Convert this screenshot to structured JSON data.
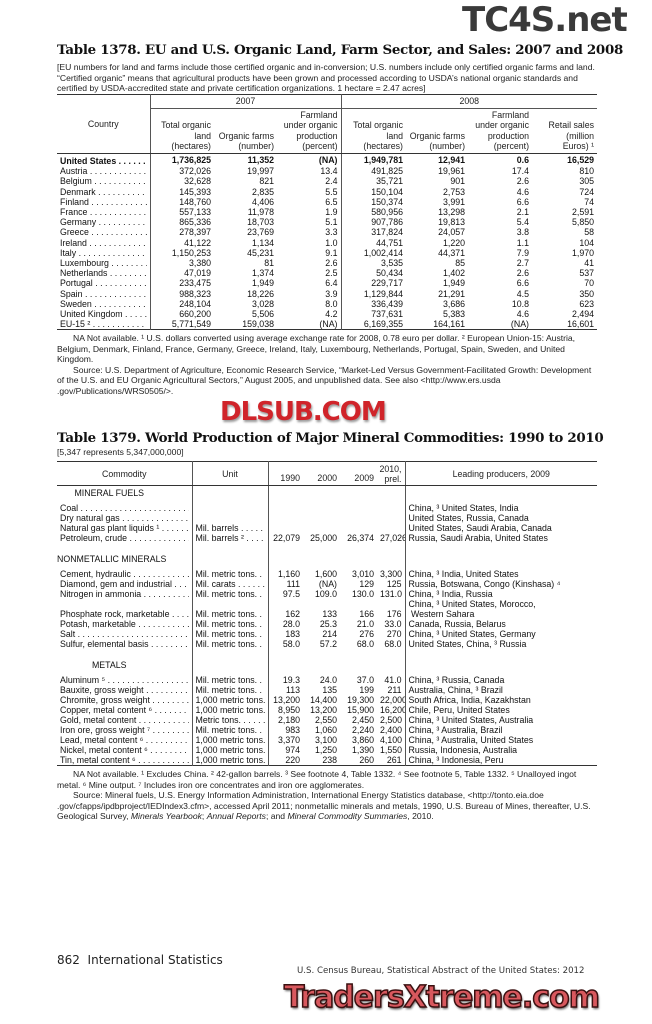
{
  "watermarks": {
    "top": "TC4S.net",
    "middle": "DLSUB.COM",
    "bottom": "TradersXtreme.com"
  },
  "table1378": {
    "title": "Table 1378. EU and U.S. Organic Land, Farm Sector, and Sales: 2007 and 2008",
    "headnote": "[EU numbers for land and farms include those certified organic and in-conversion; U.S. numbers include only certified organic farms and land. “Certified organic” means that agricultural products have been grown and processed according  to USDA’s national organic standards and certified by USDA-accredited state and private certification organizations. 1 hectare = 2.47 acres]",
    "col_country": "Country",
    "year_2007": "2007",
    "year_2008": "2008",
    "cols": [
      "Total organic land (hectares)",
      "Organic farms (number)",
      "Farmland under organic production (percent)",
      "Total organic land (hectares)",
      "Organic farms (number)",
      "Farmland under organic production (percent)",
      "Retail sales (million Euros) ¹"
    ],
    "rows": [
      [
        "United States",
        "1,736,825",
        "11,352",
        "(NA)",
        "1,949,781",
        "12,941",
        "0.6",
        "16,529"
      ],
      [
        "Austria",
        "372,026",
        "19,997",
        "13.4",
        "491,825",
        "19,961",
        "17.4",
        "810"
      ],
      [
        "Belgium",
        "32,628",
        "821",
        "2.4",
        "35,721",
        "901",
        "2.6",
        "305"
      ],
      [
        "Denmark",
        "145,393",
        "2,835",
        "5.5",
        "150,104",
        "2,753",
        "4.6",
        "724"
      ],
      [
        "Finland",
        "148,760",
        "4,406",
        "6.5",
        "150,374",
        "3,991",
        "6.6",
        "74"
      ],
      [
        "France",
        "557,133",
        "11,978",
        "1.9",
        "580,956",
        "13,298",
        "2.1",
        "2,591"
      ],
      [
        "Germany",
        "865,336",
        "18,703",
        "5.1",
        "907,786",
        "19,813",
        "5.4",
        "5,850"
      ],
      [
        "Greece",
        "278,397",
        "23,769",
        "3.3",
        "317,824",
        "24,057",
        "3.8",
        "58"
      ],
      [
        "Ireland",
        "41,122",
        "1,134",
        "1.0",
        "44,751",
        "1,220",
        "1.1",
        "104"
      ],
      [
        "Italy",
        "1,150,253",
        "45,231",
        "9.1",
        "1,002,414",
        "44,371",
        "7.9",
        "1,970"
      ],
      [
        "Luxembourg",
        "3,380",
        "81",
        "2.6",
        "3,535",
        "85",
        "2.7",
        "41"
      ],
      [
        "Netherlands",
        "47,019",
        "1,374",
        "2.5",
        "50,434",
        "1,402",
        "2.6",
        "537"
      ],
      [
        "Portugal",
        "233,475",
        "1,949",
        "6.4",
        "229,717",
        "1,949",
        "6.6",
        "70"
      ],
      [
        "Spain",
        "988,323",
        "18,226",
        "3.9",
        "1,129,844",
        "21,291",
        "4.5",
        "350"
      ],
      [
        "Sweden",
        "248,104",
        "3,028",
        "8.0",
        "336,439",
        "3,686",
        "10.8",
        "623"
      ],
      [
        "United Kingdom",
        "660,200",
        "5,506",
        "4.2",
        "737,631",
        "5,383",
        "4.6",
        "2,494"
      ],
      [
        "EU-15 ²",
        "5,771,549",
        "159,038",
        "(NA)",
        "6,169,355",
        "164,161",
        "(NA)",
        "16,601"
      ]
    ],
    "footnote": "NA Not available. ¹ U.S. dollars converted using average exchange rate for 2008, 0.78 euro per dollar. ² European Union-15: Austria, Belgium, Denmark, Finland, France, Germany, Greece, Ireland, Italy, Luxembourg, Netherlands, Portugal, Spain, Sweden, and United Kingdom.",
    "source": "Source: U.S. Department of Agriculture, Economic Research Service, “Market-Led Versus Government-Facilitated Growth: Development of the U.S. and EU Organic Agricultural Sectors,” August 2005, and unpublished data. See also <http://www.ers.usda .gov/Publications/WRS0505/>."
  },
  "table1379": {
    "title": "Table 1379. World Production of Major Mineral Commodities: 1990 to 2010",
    "headnote": "[5,347 represents 5,347,000,000]",
    "headers": {
      "commodity": "Commodity",
      "unit": "Unit",
      "y1990": "1990",
      "y2000": "2000",
      "y2009": "2009",
      "y2010": "2010, prel.",
      "leading": "Leading producers, 2009"
    },
    "sections": [
      {
        "heading": "MINERAL FUELS",
        "rows": [
          [
            "Coal",
            "",
            "",
            "",
            "",
            "",
            "China, ³ United States, India"
          ],
          [
            "Dry natural gas",
            "",
            "",
            "",
            "",
            "",
            "United States, Russia, Canada"
          ],
          [
            "Natural gas plant liquids ¹",
            "Mil. barrels",
            "",
            "",
            "",
            "",
            "United States, Saudi Arabia, Canada"
          ],
          [
            "Petroleum, crude",
            "Mil. barrels ²",
            "22,079",
            "25,000",
            "26,374",
            "27,026",
            "Russia, Saudi Arabia, United States"
          ]
        ]
      },
      {
        "heading": "NONMETALLIC MINERALS",
        "rows": [
          [
            "Cement, hydraulic",
            "Mil. metric tons.",
            "1,160",
            "1,600",
            "3,010",
            "3,300",
            "China, ³ India, United States"
          ],
          [
            "Diamond, gem and industrial",
            "Mil. carats",
            "111",
            "(NA)",
            "129",
            "125",
            "Russia, Botswana, Congo (Kinshasa) ⁴"
          ],
          [
            "Nitrogen in ammonia",
            "Mil. metric tons.",
            "97.5",
            "109.0",
            "130.0",
            "131.0",
            "China, ³ India, Russia"
          ],
          [
            "Phosphate rock, marketable",
            "Mil. metric tons.",
            "162",
            "133",
            "166",
            "176",
            "China, ³ United States, Morocco,\n Western Sahara"
          ],
          [
            "Potash, marketable",
            "Mil. metric tons.",
            "28.0",
            "25.3",
            "21.0",
            "33.0",
            "Canada, Russia, Belarus"
          ],
          [
            "Salt",
            "Mil. metric tons.",
            "183",
            "214",
            "276",
            "270",
            "China, ³ United States, Germany"
          ],
          [
            "Sulfur, elemental basis",
            "Mil. metric tons.",
            "58.0",
            "57.2",
            "68.0",
            "68.0",
            "United States, China, ³ Russia"
          ]
        ]
      },
      {
        "heading": "METALS",
        "rows": [
          [
            "Aluminum ⁵",
            "Mil. metric tons.",
            "19.3",
            "24.0",
            "37.0",
            "41.0",
            "China, ³ Russia, Canada"
          ],
          [
            "Bauxite, gross weight",
            "Mil. metric tons.",
            "113",
            "135",
            "199",
            "211",
            "Australia, China, ³ Brazil"
          ],
          [
            "Chromite, gross weight",
            "1,000 metric tons.",
            "13,200",
            "14,400",
            "19,300",
            "22,000",
            "South Africa, India, Kazakhstan"
          ],
          [
            "Copper, metal content ⁶",
            "1,000 metric tons.",
            "8,950",
            "13,200",
            "15,900",
            "16,200",
            "Chile, Peru, United States"
          ],
          [
            "Gold, metal content",
            "Metric tons.",
            "2,180",
            "2,550",
            "2,450",
            "2,500",
            "China, ³ United States, Australia"
          ],
          [
            "Iron ore, gross weight ⁷",
            "Mil. metric tons.",
            "983",
            "1,060",
            "2,240",
            "2,400",
            "China, ³ Australia, Brazil"
          ],
          [
            "Lead, metal content ⁶",
            "1,000 metric tons.",
            "3,370",
            "3,100",
            "3,860",
            "4,100",
            "China, ³ Australia, United States"
          ],
          [
            "Nickel, metal content ⁶",
            "1,000 metric tons.",
            "974",
            "1,250",
            "1,390",
            "1,550",
            "Russia, Indonesia, Australia"
          ],
          [
            "Tin, metal content ⁶",
            "1,000 metric tons.",
            "220",
            "238",
            "260",
            "261",
            "China, ³ Indonesia, Peru"
          ]
        ]
      }
    ],
    "footnote": "NA Not available. ¹ Excludes China. ² 42-gallon barrels. ³ See footnote 4, Table 1332. ⁴ See footnote 5, Table 1332. ⁵ Unalloyed ingot metal. ⁶ Mine output. ⁷ Includes iron ore concentrates and iron ore agglomerates.",
    "source": [
      {
        "text": "Source: Mineral fuels, U.S. Energy Information Administration, International Energy Statistics database, <http://tonto.eia.doe .gov/cfapps/ipdbproject/IEDIndex3.cfm>, accessed April 2011; nonmetallic minerals and metals, 1990, U.S. Bureau of Mines, thereafter, U.S. Geological Survey, ",
        "italic": false
      },
      {
        "text": "Minerals Yearbook",
        "italic": true
      },
      {
        "text": "; ",
        "italic": false
      },
      {
        "text": "Annual Reports",
        "italic": true
      },
      {
        "text": "; and ",
        "italic": false
      },
      {
        "text": "Mineral Commodity Summaries",
        "italic": true
      },
      {
        "text": ", 2010.",
        "italic": false
      }
    ]
  },
  "footer": {
    "page_number": "862",
    "section": "International Statistics",
    "credit": "U.S. Census Bureau, Statistical Abstract of the United States: 2012"
  }
}
